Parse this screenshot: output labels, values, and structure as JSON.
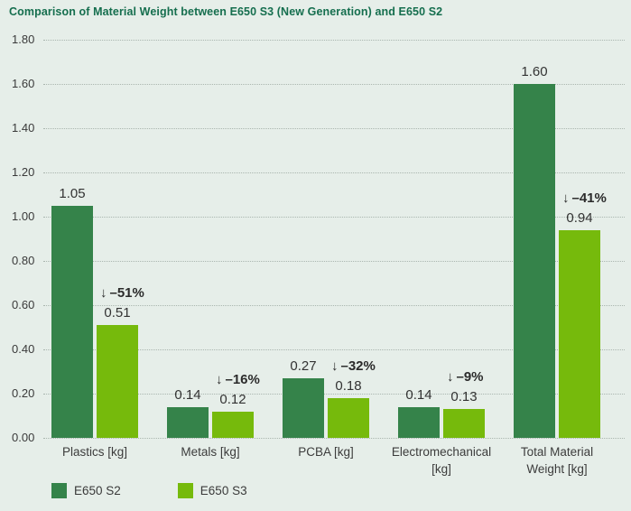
{
  "title": "Comparison of Material Weight between E650 S3 (New Generation) and E650 S2",
  "colors": {
    "background": "#e6eee9",
    "title": "#156e4e",
    "gridline": "#aab6af",
    "text": "#333333",
    "s2_bar": "#35834a",
    "s3_bar": "#76ba0c"
  },
  "chart_data": {
    "type": "bar",
    "title": "Comparison of Material Weight between E650 S3 (New Generation) and E650 S2",
    "categories": [
      "Plastics [kg]",
      "Metals [kg]",
      "PCBA [kg]",
      "Electromechanical [kg]",
      "Total Material Weight [kg]"
    ],
    "series": [
      {
        "name": "E650 S2",
        "color": "#35834a",
        "values": [
          1.05,
          0.14,
          0.27,
          0.14,
          1.6
        ],
        "value_labels": [
          "1.05",
          "0.14",
          "0.27",
          "0.14",
          "1.60"
        ]
      },
      {
        "name": "E650 S3",
        "color": "#76ba0c",
        "values": [
          0.51,
          0.12,
          0.18,
          0.13,
          0.94
        ],
        "value_labels": [
          "0.51",
          "0.12",
          "0.18",
          "0.13",
          "0.94"
        ]
      }
    ],
    "reductions": [
      {
        "arrow": "↓",
        "text": "–51%"
      },
      {
        "arrow": "↓",
        "text": "–16%"
      },
      {
        "arrow": "↓",
        "text": "–32%"
      },
      {
        "arrow": "↓",
        "text": "–9%"
      },
      {
        "arrow": "↓",
        "text": "–41%"
      }
    ],
    "xlabel": "",
    "ylabel": "",
    "ylim": [
      0,
      1.8
    ],
    "ytick_step": 0.2,
    "ytick_labels": [
      "0.00",
      "0.20",
      "0.40",
      "0.60",
      "0.80",
      "1.00",
      "1.20",
      "1.40",
      "1.60",
      "1.80"
    ],
    "grid": "horizontal-dotted",
    "legend_position": "bottom-left"
  },
  "legend": {
    "items": [
      {
        "label": "E650 S2",
        "color": "#35834a"
      },
      {
        "label": "E650 S3",
        "color": "#76ba0c"
      }
    ]
  }
}
